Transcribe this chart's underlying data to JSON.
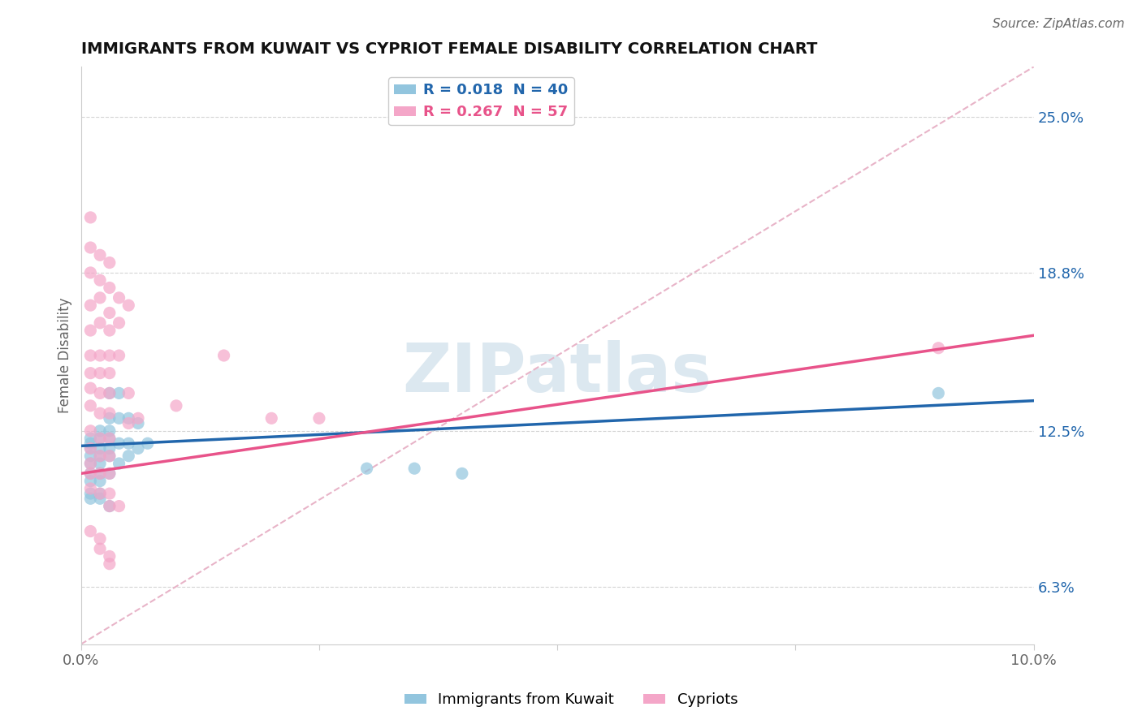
{
  "title": "IMMIGRANTS FROM KUWAIT VS CYPRIOT FEMALE DISABILITY CORRELATION CHART",
  "source": "Source: ZipAtlas.com",
  "ylabel": "Female Disability",
  "watermark": "ZIPatlas",
  "xlim": [
    0.0,
    0.1
  ],
  "ylim": [
    0.04,
    0.27
  ],
  "yticks": [
    0.063,
    0.125,
    0.188,
    0.25
  ],
  "ytick_labels": [
    "6.3%",
    "12.5%",
    "18.8%",
    "25.0%"
  ],
  "legend_1": "R = 0.018  N = 40",
  "legend_2": "R = 0.267  N = 57",
  "blue_color": "#92c5de",
  "pink_color": "#f4a6c8",
  "blue_line_color": "#2166ac",
  "pink_line_color": "#e8538a",
  "dashed_line_color": "#e8b4c8",
  "scatter_blue": [
    [
      0.001,
      0.12
    ],
    [
      0.001,
      0.118
    ],
    [
      0.001,
      0.115
    ],
    [
      0.001,
      0.112
    ],
    [
      0.001,
      0.108
    ],
    [
      0.001,
      0.105
    ],
    [
      0.001,
      0.1
    ],
    [
      0.001,
      0.098
    ],
    [
      0.001,
      0.122
    ],
    [
      0.002,
      0.125
    ],
    [
      0.002,
      0.122
    ],
    [
      0.002,
      0.118
    ],
    [
      0.002,
      0.115
    ],
    [
      0.002,
      0.112
    ],
    [
      0.002,
      0.108
    ],
    [
      0.002,
      0.105
    ],
    [
      0.002,
      0.1
    ],
    [
      0.002,
      0.098
    ],
    [
      0.003,
      0.14
    ],
    [
      0.003,
      0.13
    ],
    [
      0.003,
      0.125
    ],
    [
      0.003,
      0.122
    ],
    [
      0.003,
      0.118
    ],
    [
      0.003,
      0.115
    ],
    [
      0.003,
      0.108
    ],
    [
      0.003,
      0.095
    ],
    [
      0.004,
      0.14
    ],
    [
      0.004,
      0.13
    ],
    [
      0.004,
      0.12
    ],
    [
      0.004,
      0.112
    ],
    [
      0.005,
      0.13
    ],
    [
      0.005,
      0.12
    ],
    [
      0.005,
      0.115
    ],
    [
      0.006,
      0.128
    ],
    [
      0.006,
      0.118
    ],
    [
      0.007,
      0.12
    ],
    [
      0.03,
      0.11
    ],
    [
      0.035,
      0.11
    ],
    [
      0.04,
      0.108
    ],
    [
      0.09,
      0.14
    ]
  ],
  "scatter_pink": [
    [
      0.001,
      0.21
    ],
    [
      0.001,
      0.198
    ],
    [
      0.001,
      0.188
    ],
    [
      0.001,
      0.175
    ],
    [
      0.001,
      0.165
    ],
    [
      0.001,
      0.155
    ],
    [
      0.001,
      0.148
    ],
    [
      0.001,
      0.142
    ],
    [
      0.001,
      0.135
    ],
    [
      0.001,
      0.125
    ],
    [
      0.001,
      0.118
    ],
    [
      0.001,
      0.112
    ],
    [
      0.001,
      0.108
    ],
    [
      0.001,
      0.102
    ],
    [
      0.002,
      0.195
    ],
    [
      0.002,
      0.185
    ],
    [
      0.002,
      0.178
    ],
    [
      0.002,
      0.168
    ],
    [
      0.002,
      0.155
    ],
    [
      0.002,
      0.148
    ],
    [
      0.002,
      0.14
    ],
    [
      0.002,
      0.132
    ],
    [
      0.002,
      0.122
    ],
    [
      0.002,
      0.115
    ],
    [
      0.002,
      0.108
    ],
    [
      0.002,
      0.1
    ],
    [
      0.003,
      0.192
    ],
    [
      0.003,
      0.182
    ],
    [
      0.003,
      0.172
    ],
    [
      0.003,
      0.165
    ],
    [
      0.003,
      0.155
    ],
    [
      0.003,
      0.148
    ],
    [
      0.003,
      0.14
    ],
    [
      0.003,
      0.132
    ],
    [
      0.003,
      0.122
    ],
    [
      0.003,
      0.115
    ],
    [
      0.003,
      0.108
    ],
    [
      0.003,
      0.1
    ],
    [
      0.003,
      0.095
    ],
    [
      0.004,
      0.178
    ],
    [
      0.004,
      0.168
    ],
    [
      0.004,
      0.155
    ],
    [
      0.004,
      0.095
    ],
    [
      0.005,
      0.175
    ],
    [
      0.005,
      0.14
    ],
    [
      0.005,
      0.128
    ],
    [
      0.006,
      0.13
    ],
    [
      0.01,
      0.135
    ],
    [
      0.015,
      0.155
    ],
    [
      0.02,
      0.13
    ],
    [
      0.025,
      0.13
    ],
    [
      0.001,
      0.085
    ],
    [
      0.002,
      0.082
    ],
    [
      0.002,
      0.078
    ],
    [
      0.003,
      0.075
    ],
    [
      0.003,
      0.072
    ],
    [
      0.09,
      0.158
    ]
  ]
}
